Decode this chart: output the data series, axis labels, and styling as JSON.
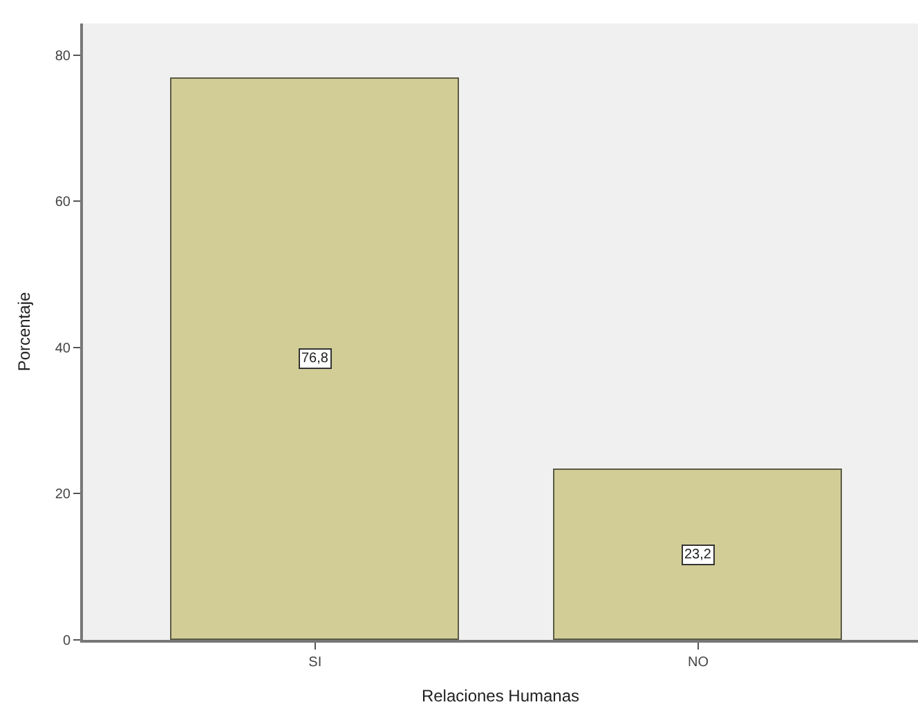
{
  "chart_data": {
    "type": "bar",
    "xlabel": "Relaciones Humanas",
    "ylabel": "Porcentaje",
    "categories": [
      "SI",
      "NO"
    ],
    "values": [
      76.8,
      23.2
    ],
    "value_labels": [
      "76,8",
      "23,2"
    ],
    "color": "#d2cd96",
    "ylim": [
      0,
      84.3
    ],
    "yticks": [
      0,
      20,
      40,
      60,
      80
    ],
    "grid": false,
    "legend": false
  }
}
